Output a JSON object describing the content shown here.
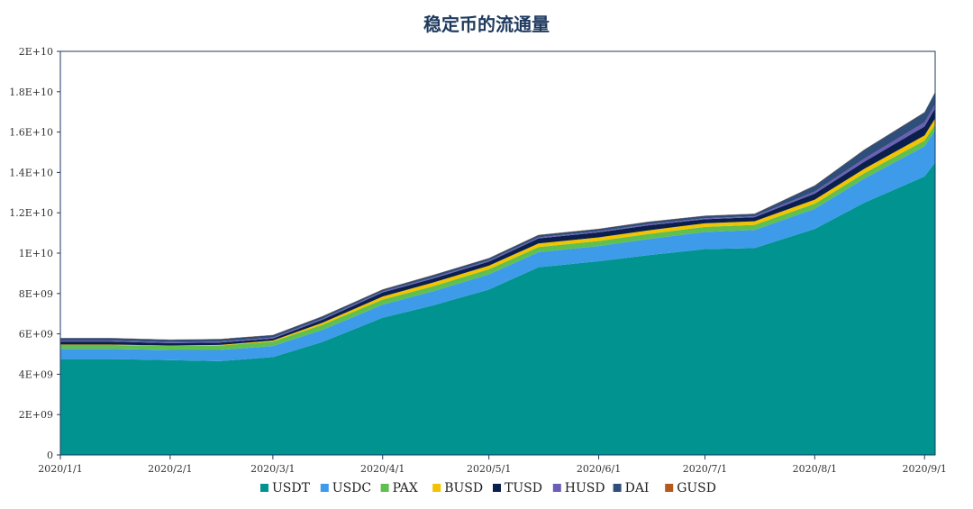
{
  "chart_data": {
    "type": "area",
    "stacked": true,
    "title": "稳定币的流通量",
    "xlabel": "",
    "ylabel": "",
    "ylim": [
      0,
      20000000000
    ],
    "y_ticks": [
      {
        "value": 0,
        "label": "0"
      },
      {
        "value": 2000000000,
        "label": "2E+09"
      },
      {
        "value": 4000000000,
        "label": "4E+09"
      },
      {
        "value": 6000000000,
        "label": "6E+09"
      },
      {
        "value": 8000000000,
        "label": "8E+09"
      },
      {
        "value": 10000000000,
        "label": "1E+10"
      },
      {
        "value": 12000000000,
        "label": "1.2E+10"
      },
      {
        "value": 14000000000,
        "label": "1.4E+10"
      },
      {
        "value": 16000000000,
        "label": "1.6E+10"
      },
      {
        "value": 18000000000,
        "label": "1.8E+10"
      },
      {
        "value": 20000000000,
        "label": "2E+10"
      }
    ],
    "x_ticks": [
      "2020/1/1",
      "2020/2/1",
      "2020/3/1",
      "2020/4/1",
      "2020/5/1",
      "2020/6/1",
      "2020/7/1",
      "2020/8/1",
      "2020/9/1"
    ],
    "x": [
      "2020/1/1",
      "2020/1/15",
      "2020/2/1",
      "2020/2/15",
      "2020/3/1",
      "2020/3/15",
      "2020/4/1",
      "2020/4/15",
      "2020/5/1",
      "2020/5/15",
      "2020/6/1",
      "2020/6/15",
      "2020/7/1",
      "2020/7/15",
      "2020/8/1",
      "2020/8/15",
      "2020/9/1",
      "2020/9/4"
    ],
    "legend_position": "bottom",
    "grid": false,
    "series": [
      {
        "name": "USDT",
        "color": "#00938f",
        "values": [
          4750000000.0,
          4750000000.0,
          4700000000.0,
          4650000000.0,
          4850000000.0,
          5600000000.0,
          6800000000.0,
          7400000000.0,
          8200000000.0,
          9300000000.0,
          9600000000.0,
          9900000000.0,
          10200000000.0,
          10250000000.0,
          11200000000.0,
          12500000000.0,
          13800000000.0,
          14500000000.0
        ]
      },
      {
        "name": "USDC",
        "color": "#3d9be9",
        "values": [
          500000000.0,
          500000000.0,
          500000000.0,
          550000000.0,
          550000000.0,
          600000000.0,
          650000000.0,
          700000000.0,
          750000000.0,
          750000000.0,
          750000000.0,
          800000000.0,
          850000000.0,
          900000000.0,
          1000000000.0,
          1200000000.0,
          1500000000.0,
          1600000000.0
        ]
      },
      {
        "name": "PAX",
        "color": "#5fbf4f",
        "values": [
          200000000.0,
          200000000.0,
          200000000.0,
          220000000.0,
          220000000.0,
          250000000.0,
          250000000.0,
          250000000.0,
          250000000.0,
          250000000.0,
          250000000.0,
          250000000.0,
          250000000.0,
          250000000.0,
          250000000.0,
          260000000.0,
          280000000.0,
          280000000.0
        ]
      },
      {
        "name": "BUSD",
        "color": "#f2c300",
        "values": [
          20000000.0,
          20000000.0,
          20000000.0,
          30000000.0,
          50000000.0,
          100000000.0,
          150000000.0,
          180000000.0,
          180000000.0,
          180000000.0,
          180000000.0,
          180000000.0,
          180000000.0,
          180000000.0,
          200000000.0,
          220000000.0,
          250000000.0,
          300000000.0
        ]
      },
      {
        "name": "TUSD",
        "color": "#0b1f4d",
        "values": [
          150000000.0,
          150000000.0,
          120000000.0,
          120000000.0,
          100000000.0,
          150000000.0,
          200000000.0,
          200000000.0,
          200000000.0,
          250000000.0,
          250000000.0,
          250000000.0,
          200000000.0,
          200000000.0,
          300000000.0,
          350000000.0,
          450000000.0,
          500000000.0
        ]
      },
      {
        "name": "HUSD",
        "color": "#6b5fb5",
        "values": [
          50000000.0,
          50000000.0,
          50000000.0,
          50000000.0,
          50000000.0,
          50000000.0,
          50000000.0,
          50000000.0,
          50000000.0,
          50000000.0,
          50000000.0,
          50000000.0,
          50000000.0,
          50000000.0,
          100000000.0,
          150000000.0,
          200000000.0,
          200000000.0
        ]
      },
      {
        "name": "DAI",
        "color": "#2f4f7a",
        "values": [
          120000000.0,
          120000000.0,
          120000000.0,
          120000000.0,
          120000000.0,
          120000000.0,
          100000000.0,
          120000000.0,
          120000000.0,
          120000000.0,
          120000000.0,
          120000000.0,
          120000000.0,
          120000000.0,
          300000000.0,
          450000000.0,
          500000000.0,
          600000000.0
        ]
      },
      {
        "name": "GUSD",
        "color": "#b35a1f",
        "values": [
          10000000.0,
          10000000.0,
          10000000.0,
          10000000.0,
          10000000.0,
          10000000.0,
          10000000.0,
          10000000.0,
          10000000.0,
          10000000.0,
          10000000.0,
          10000000.0,
          10000000.0,
          10000000.0,
          10000000.0,
          10000000.0,
          10000000.0,
          10000000.0
        ]
      }
    ]
  }
}
